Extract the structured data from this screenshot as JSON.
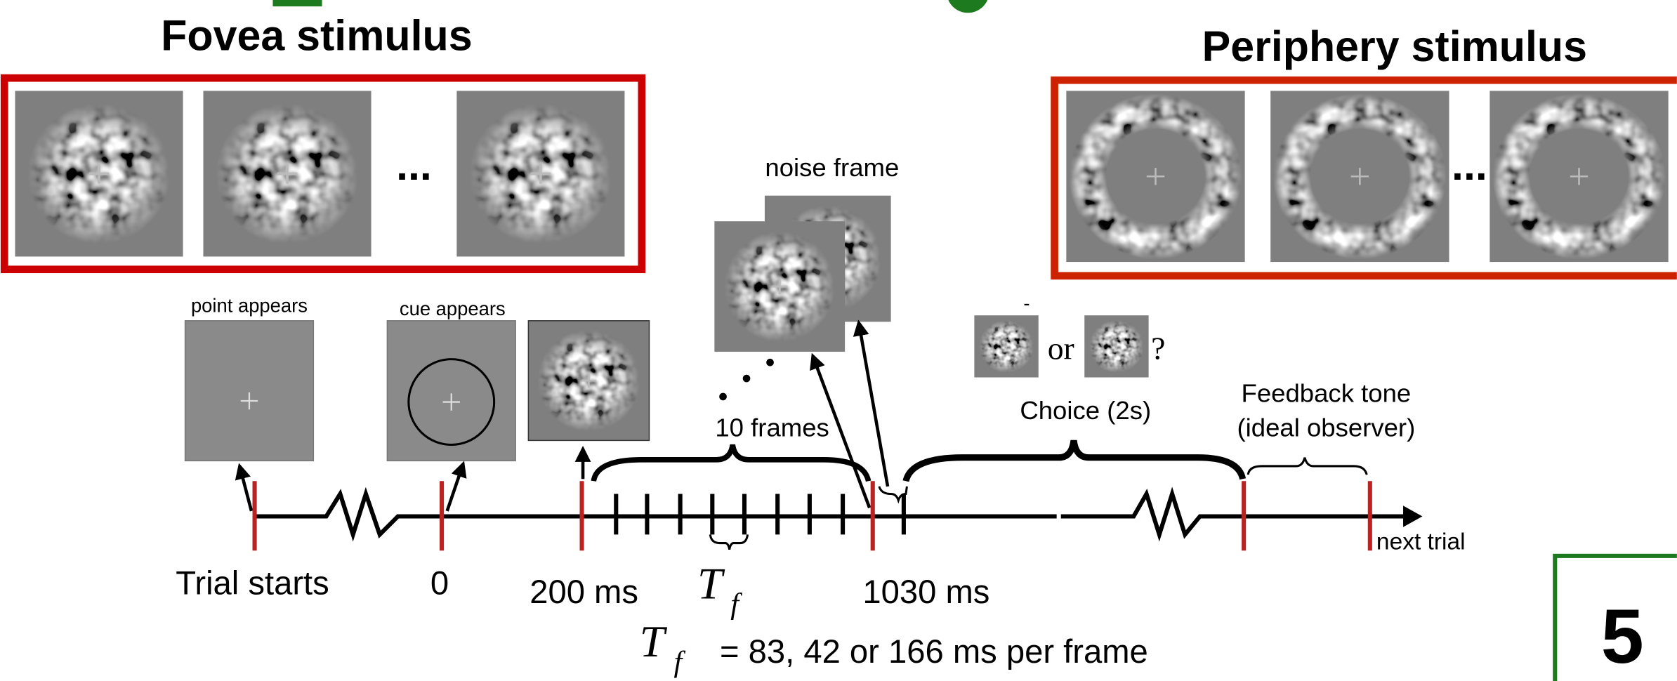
{
  "fovea": {
    "title": "Fovea stimulus",
    "ellipsis": "..."
  },
  "periphery": {
    "title": "Periphery stimulus",
    "ellipsis": "..."
  },
  "noise_frame": "noise frame",
  "events": {
    "point": "point appears",
    "cue": "cue appears"
  },
  "frames_label": "10 frames",
  "choice": {
    "dash": "-",
    "or": "or",
    "question": "?",
    "label": "Choice (2s)"
  },
  "feedback": {
    "line1": "Feedback tone",
    "line2": "(ideal observer)"
  },
  "next_trial": "next trial",
  "times": {
    "start": "Trial starts",
    "zero": "0",
    "t200": "200 ms",
    "t1030": "1030 ms"
  },
  "tf": {
    "symbol": "T",
    "subscript": "f",
    "caption": "= 83, 42 or 166 ms per frame"
  },
  "page_number": "5"
}
